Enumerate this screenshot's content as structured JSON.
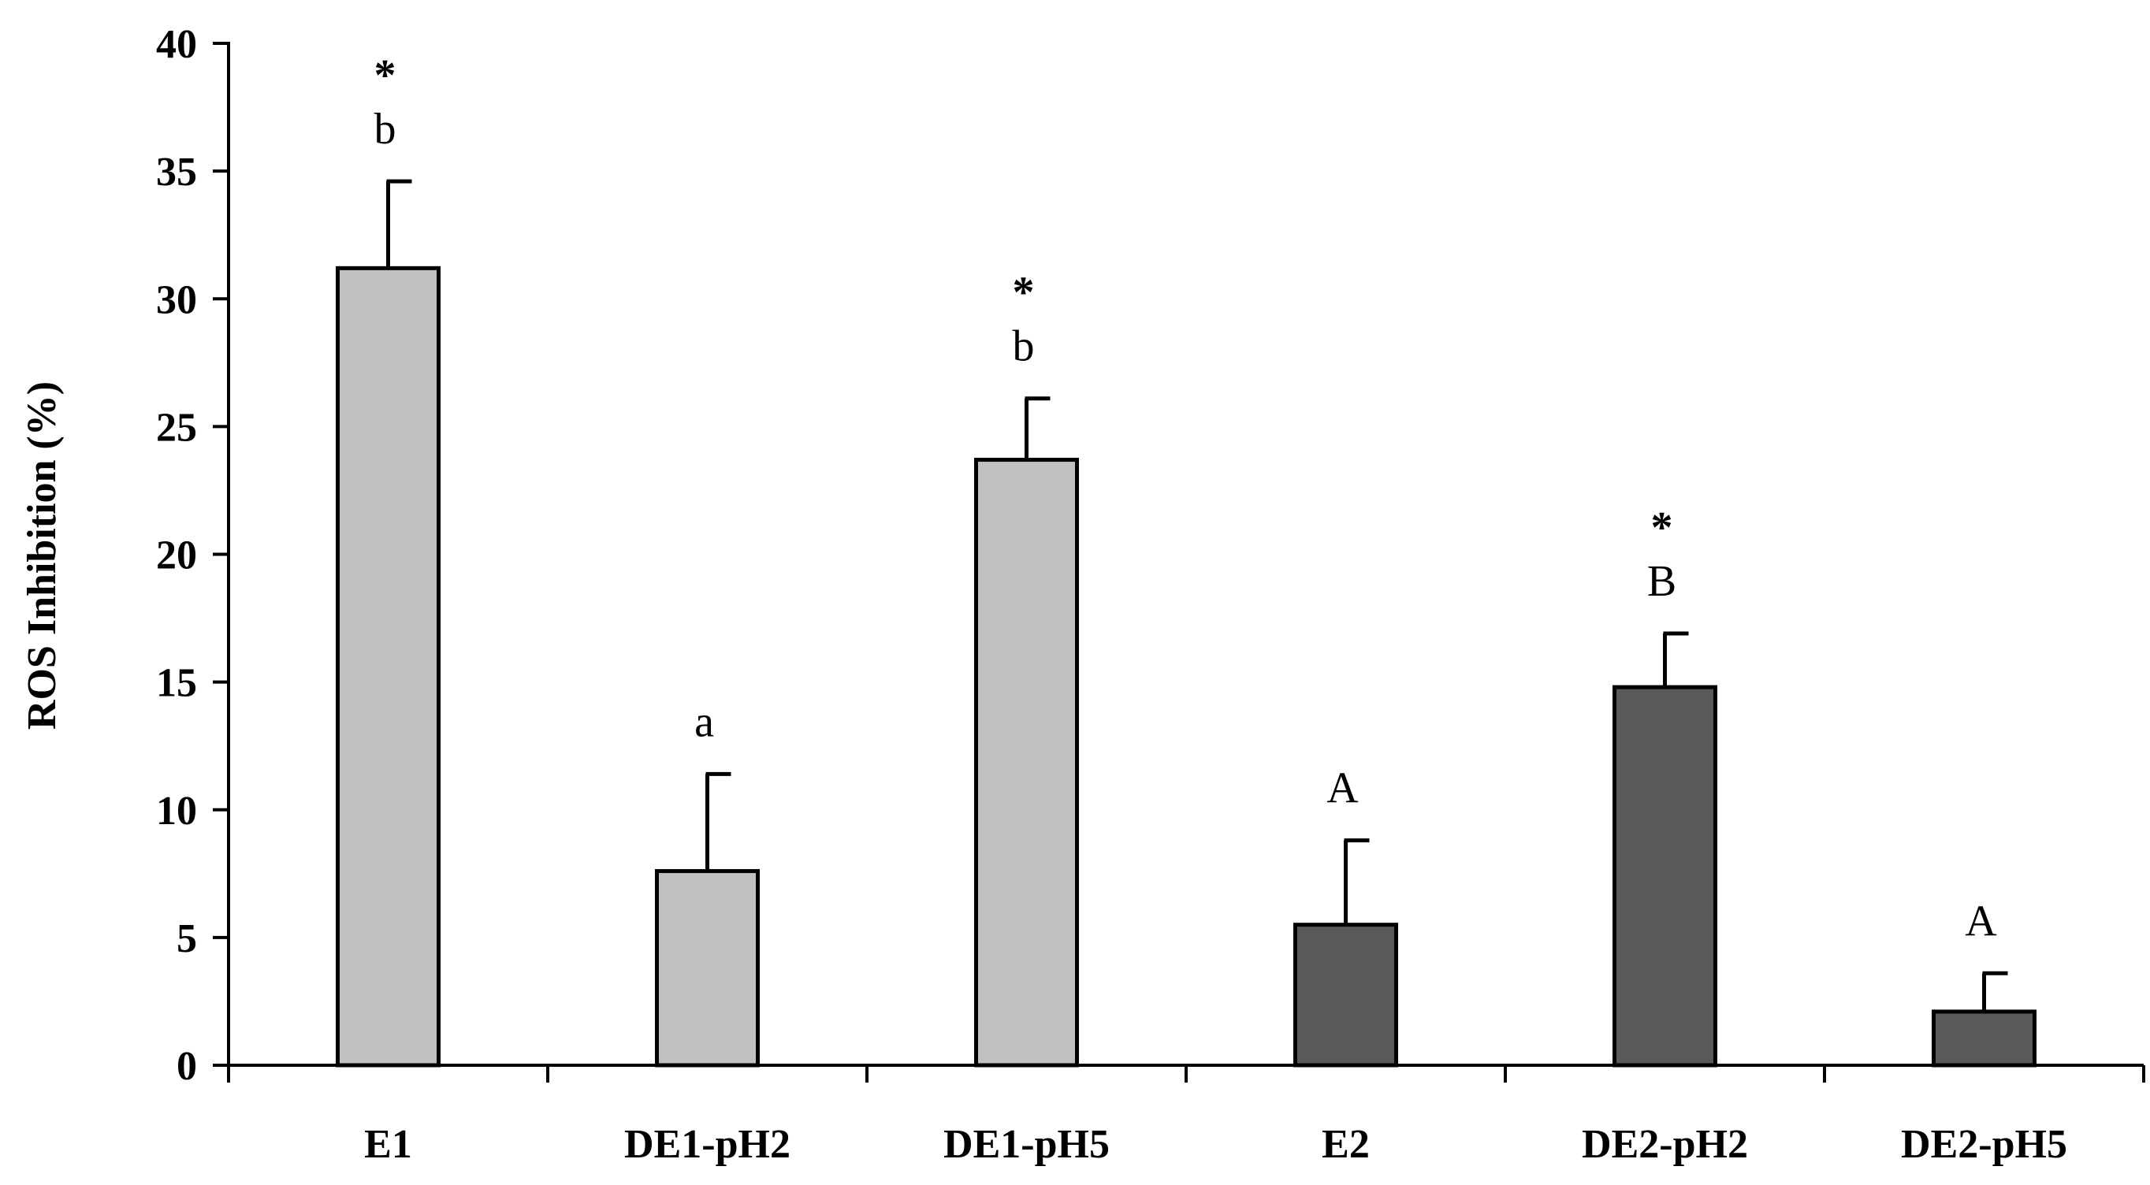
{
  "chart_data": {
    "type": "bar",
    "title": "",
    "xlabel": "",
    "ylabel": "ROS Inhibition (%)",
    "ylim": [
      0,
      40
    ],
    "yticks": [
      0,
      5,
      10,
      15,
      20,
      25,
      30,
      35,
      40
    ],
    "grid": false,
    "categories": [
      "E1",
      "DE1-pH2",
      "DE1-pH5",
      "E2",
      "DE2-pH2",
      "DE2-pH5"
    ],
    "values": [
      31.2,
      7.6,
      23.7,
      5.5,
      14.8,
      2.1
    ],
    "errors": [
      3.4,
      3.8,
      2.4,
      3.3,
      2.1,
      1.5
    ],
    "letters": [
      "b",
      "a",
      "b",
      "A",
      "B",
      "A"
    ],
    "stars": [
      "*",
      "",
      "*",
      "",
      "*",
      ""
    ],
    "colors": [
      "#c0c0c0",
      "#c0c0c0",
      "#c0c0c0",
      "#595959",
      "#595959",
      "#595959"
    ]
  }
}
